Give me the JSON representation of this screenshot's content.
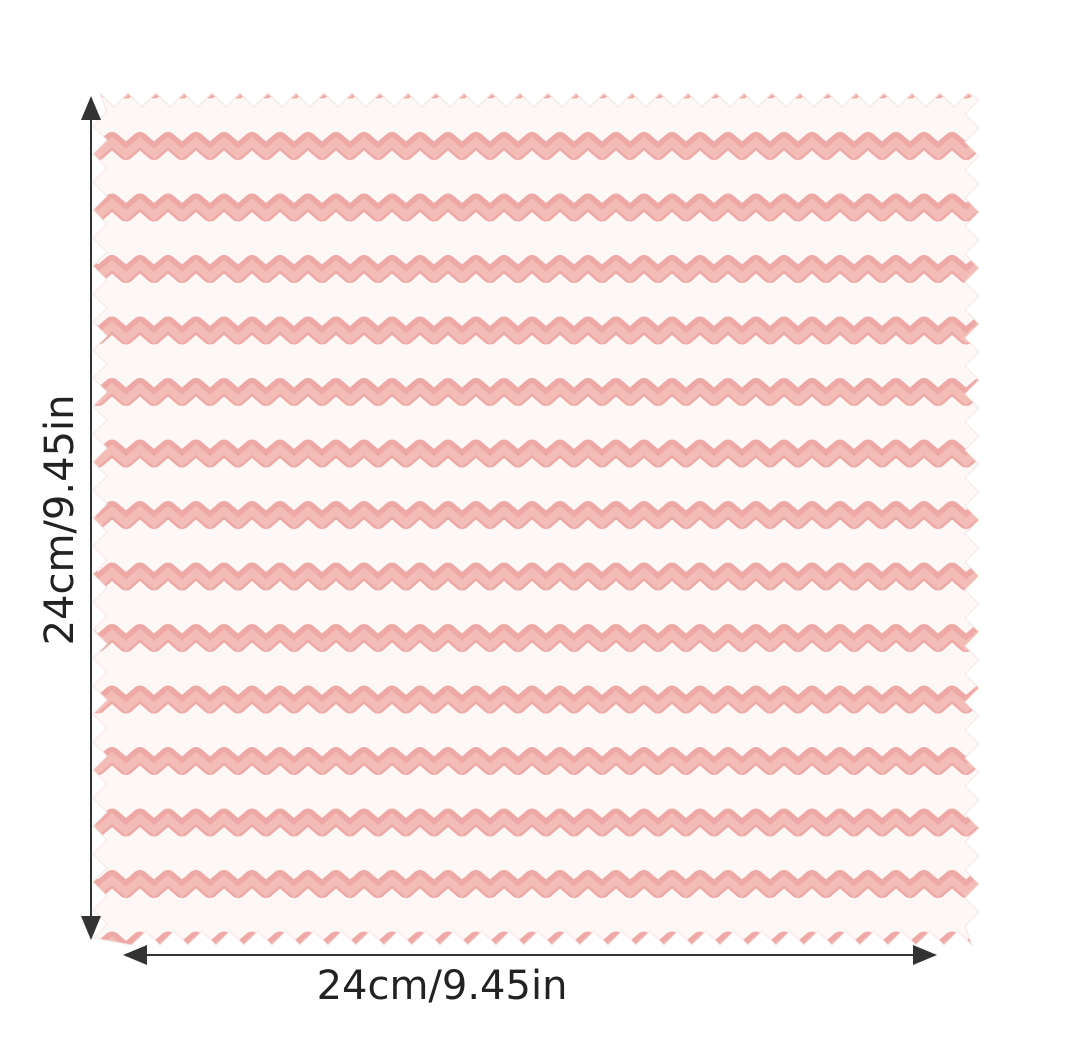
{
  "dimensions": {
    "height_label": "24cm/9.45in",
    "width_label": "24cm/9.45in"
  }
}
